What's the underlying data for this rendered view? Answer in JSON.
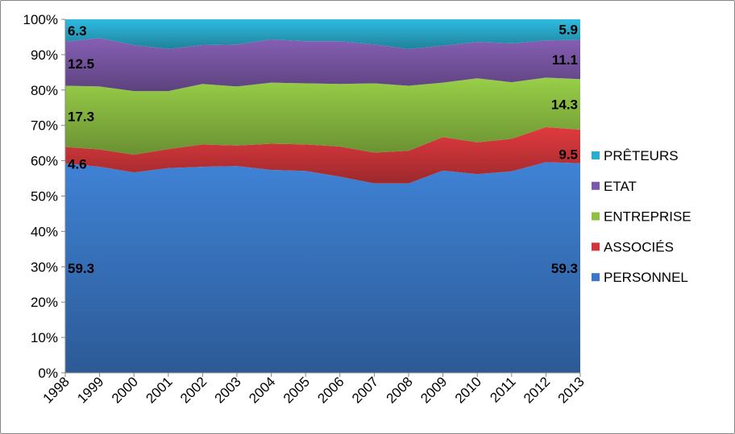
{
  "chart_data": {
    "type": "area",
    "stacking": "percent",
    "categories": [
      "1998",
      "1999",
      "2000",
      "2001",
      "2002",
      "2003",
      "2004",
      "2005",
      "2006",
      "2007",
      "2008",
      "2009",
      "2010",
      "2011",
      "2012",
      "2013"
    ],
    "series": [
      {
        "name": "PERSONNEL",
        "color": "#3a78c6",
        "values": [
          59.3,
          58.3,
          56.7,
          57.9,
          58.3,
          58.5,
          57.4,
          57.1,
          55.5,
          53.6,
          53.6,
          57.2,
          56.2,
          57.0,
          59.6,
          59.3
        ]
      },
      {
        "name": "ASSOCIÉS",
        "color": "#d0363a",
        "values": [
          4.6,
          4.9,
          5.0,
          5.4,
          6.3,
          5.8,
          7.4,
          7.5,
          8.5,
          8.7,
          9.2,
          9.5,
          9.0,
          9.2,
          9.9,
          9.5
        ]
      },
      {
        "name": "ENTREPRISE",
        "color": "#8dc043",
        "values": [
          17.3,
          17.8,
          18.0,
          16.4,
          17.1,
          16.7,
          17.3,
          17.3,
          17.7,
          19.6,
          18.4,
          15.4,
          18.1,
          16.0,
          14.0,
          14.3
        ]
      },
      {
        "name": "ETAT",
        "color": "#7c58a8",
        "values": [
          12.5,
          13.7,
          13.0,
          11.9,
          11.0,
          11.9,
          12.2,
          11.9,
          12.1,
          11.0,
          10.4,
          10.4,
          10.3,
          11.0,
          10.5,
          11.1
        ]
      },
      {
        "name": "PRÊTEURS",
        "color": "#2badcf",
        "values": [
          6.3,
          5.3,
          7.3,
          8.4,
          7.3,
          7.1,
          5.7,
          6.2,
          6.2,
          7.1,
          8.4,
          7.5,
          6.4,
          6.8,
          6.0,
          5.9
        ]
      }
    ],
    "data_labels": {
      "first": [
        "59.3",
        "4.6",
        "17.3",
        "12.5",
        "6.3"
      ],
      "last": [
        "59.3",
        "9.5",
        "14.3",
        "11.1",
        "5.9"
      ]
    },
    "y_ticks": [
      "0%",
      "10%",
      "20%",
      "30%",
      "40%",
      "50%",
      "60%",
      "70%",
      "80%",
      "90%",
      "100%"
    ],
    "ylim": [
      0,
      100
    ],
    "legend_position": "right",
    "grid": false
  }
}
